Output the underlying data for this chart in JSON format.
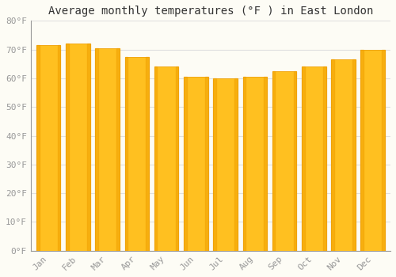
{
  "title": "Average monthly temperatures (°F ) in East London",
  "months": [
    "Jan",
    "Feb",
    "Mar",
    "Apr",
    "May",
    "Jun",
    "Jul",
    "Aug",
    "Sep",
    "Oct",
    "Nov",
    "Dec"
  ],
  "values": [
    71.5,
    72.0,
    70.5,
    67.5,
    64.0,
    60.5,
    60.0,
    60.5,
    62.5,
    64.0,
    66.5,
    70.0
  ],
  "bar_color_main": "#FFC020",
  "bar_color_edge": "#F0A000",
  "background_color": "#FDFCF5",
  "grid_color": "#E0E0E0",
  "ylim": [
    0,
    80
  ],
  "yticks": [
    0,
    10,
    20,
    30,
    40,
    50,
    60,
    70,
    80
  ],
  "ytick_labels": [
    "0°F",
    "10°F",
    "20°F",
    "30°F",
    "40°F",
    "50°F",
    "60°F",
    "70°F",
    "80°F"
  ],
  "tick_color": "#999999",
  "spine_color": "#999999",
  "title_fontsize": 10,
  "axis_fontsize": 8,
  "font_family": "monospace",
  "bar_width": 0.82
}
